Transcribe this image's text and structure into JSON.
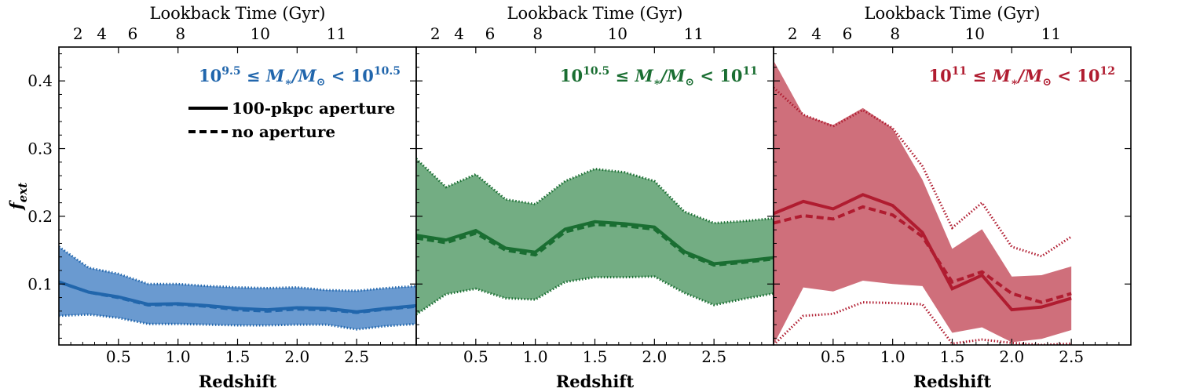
{
  "chart_data": {
    "type": "line",
    "shared": {
      "xlabel": "Redshift",
      "ylabel": "f_ext",
      "xlim": [
        0,
        3.0
      ],
      "ylim": [
        0.01,
        0.45
      ],
      "x_ticks": [
        0.5,
        1.0,
        1.5,
        2.0,
        2.5
      ],
      "x_tick_labels": [
        "0.5",
        "1.0",
        "1.5",
        "2.0",
        "2.5"
      ],
      "y_ticks": [
        0.1,
        0.2,
        0.3,
        0.4
      ],
      "y_tick_labels": [
        "0.1",
        "0.2",
        "0.3",
        "0.4"
      ],
      "top_axis_title": "Lookback Time (Gyr)",
      "top_ticks": [
        {
          "label": "2",
          "z": 0.16
        },
        {
          "label": "4",
          "z": 0.36
        },
        {
          "label": "6",
          "z": 0.62
        },
        {
          "label": "8",
          "z": 1.02
        },
        {
          "label": "10",
          "z": 1.69
        },
        {
          "label": "11",
          "z": 2.33
        }
      ],
      "legend": [
        {
          "label": "100-pkpc aperture",
          "style": "solid"
        },
        {
          "label": "no aperture",
          "style": "dashed"
        }
      ]
    },
    "panels": [
      {
        "title": "10^{9.5} ≤ M*/M⊙ < 10^{10.5}",
        "title_base1": "10",
        "title_exp1": "9.5",
        "title_middle": " ≤ M",
        "title_sub": "∗",
        "title_slash": "/M",
        "title_sub2": "⊙",
        "title_lt": " < 10",
        "title_exp2": "10.5",
        "color": "#2166ac",
        "fill_color": "#6a9ad0",
        "x": [
          0.0,
          0.25,
          0.5,
          0.75,
          1.0,
          1.25,
          1.5,
          1.75,
          2.0,
          2.25,
          2.5,
          2.75,
          3.0
        ],
        "aperture": [
          0.103,
          0.088,
          0.081,
          0.07,
          0.071,
          0.068,
          0.064,
          0.062,
          0.065,
          0.064,
          0.059,
          0.064,
          0.068
        ],
        "no_aperture": [
          0.103,
          0.088,
          0.08,
          0.069,
          0.07,
          0.067,
          0.062,
          0.06,
          0.063,
          0.062,
          0.058,
          0.063,
          0.067
        ],
        "band_upper": [
          0.155,
          0.124,
          0.115,
          0.1,
          0.1,
          0.097,
          0.095,
          0.094,
          0.095,
          0.091,
          0.09,
          0.094,
          0.097
        ],
        "band_lower": [
          0.053,
          0.055,
          0.05,
          0.041,
          0.041,
          0.04,
          0.039,
          0.039,
          0.04,
          0.04,
          0.033,
          0.038,
          0.041
        ]
      },
      {
        "title": "10^{10.5} ≤ M*/M⊙ < 10^{11}",
        "title_base1": "10",
        "title_exp1": "10.5",
        "title_middle": " ≤ M",
        "title_sub": "∗",
        "title_slash": "/M",
        "title_sub2": "⊙",
        "title_lt": " < 10",
        "title_exp2": "11",
        "color": "#1a6e32",
        "fill_color": "#73ad83",
        "x": [
          0.0,
          0.25,
          0.5,
          0.75,
          1.0,
          1.25,
          1.5,
          1.75,
          2.0,
          2.25,
          2.5,
          2.75,
          3.0
        ],
        "aperture": [
          0.172,
          0.165,
          0.179,
          0.153,
          0.147,
          0.181,
          0.192,
          0.189,
          0.184,
          0.148,
          0.13,
          0.134,
          0.139
        ],
        "no_aperture": [
          0.168,
          0.161,
          0.175,
          0.15,
          0.143,
          0.177,
          0.188,
          0.186,
          0.181,
          0.145,
          0.128,
          0.132,
          0.137
        ],
        "band_upper": [
          0.285,
          0.243,
          0.262,
          0.225,
          0.218,
          0.252,
          0.27,
          0.265,
          0.252,
          0.207,
          0.19,
          0.193,
          0.197
        ],
        "band_lower": [
          0.055,
          0.085,
          0.093,
          0.079,
          0.077,
          0.103,
          0.11,
          0.11,
          0.111,
          0.087,
          0.069,
          0.078,
          0.086
        ]
      },
      {
        "title": "10^{11} ≤ M*/M⊙ < 10^{12}",
        "title_base1": "10",
        "title_exp1": "11",
        "title_middle": " ≤ M",
        "title_sub": "∗",
        "title_slash": "/M",
        "title_sub2": "⊙",
        "title_lt": " < 10",
        "title_exp2": "12",
        "color": "#b01c30",
        "fill_color": "#cf6f7b",
        "x": [
          0.0,
          0.25,
          0.5,
          0.75,
          1.0,
          1.25,
          1.5,
          1.75,
          2.0,
          2.25,
          2.5
        ],
        "aperture": [
          0.204,
          0.222,
          0.211,
          0.232,
          0.216,
          0.176,
          0.093,
          0.113,
          0.062,
          0.066,
          0.079
        ],
        "no_aperture": [
          0.19,
          0.201,
          0.196,
          0.214,
          0.202,
          0.17,
          0.103,
          0.118,
          0.086,
          0.073,
          0.086
        ],
        "band_upper": [
          0.43,
          0.35,
          0.335,
          0.36,
          0.33,
          0.254,
          0.152,
          0.181,
          0.111,
          0.113,
          0.126
        ],
        "band_lower": [
          0.01,
          0.095,
          0.089,
          0.105,
          0.1,
          0.097,
          0.028,
          0.036,
          0.014,
          0.019,
          0.032
        ],
        "no_ap_upper": [
          0.39,
          0.35,
          0.333,
          0.357,
          0.33,
          0.274,
          0.183,
          0.22,
          0.155,
          0.141,
          0.17
        ],
        "no_ap_lower": [
          0.01,
          0.053,
          0.056,
          0.073,
          0.072,
          0.07,
          0.012,
          0.018,
          0.013,
          0.01,
          0.012
        ]
      }
    ]
  }
}
